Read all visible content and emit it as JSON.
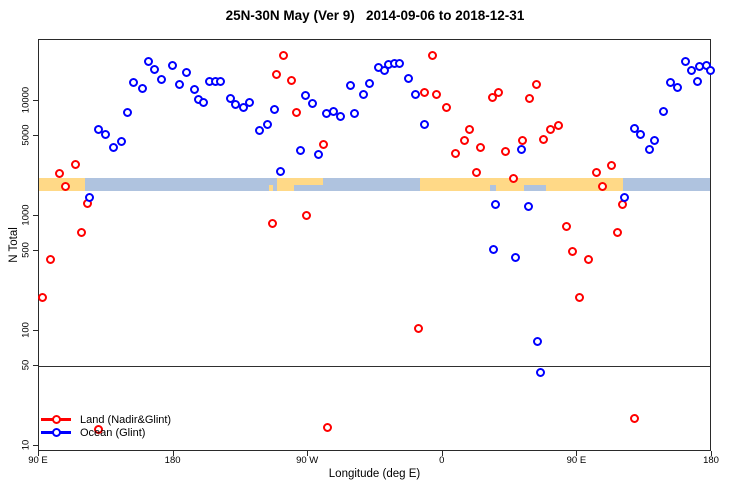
{
  "title": "25N-30N May (Ver 9)   2014-09-06 to 2018-12-31",
  "axes": {
    "x": {
      "label": "Longitude (deg E)",
      "min": 90,
      "max": 540,
      "ticks": [
        {
          "lon": 90,
          "label": "90 E"
        },
        {
          "lon": 180,
          "label": "180"
        },
        {
          "lon": 270,
          "label": "90 W"
        },
        {
          "lon": 360,
          "label": "0"
        },
        {
          "lon": 450,
          "label": "90 E"
        },
        {
          "lon": 540,
          "label": "180"
        }
      ]
    },
    "y": {
      "label": "N Total",
      "scale": "log",
      "min": 8.9,
      "max": 34000,
      "ticks": [
        {
          "value": 10000,
          "label": "10000"
        },
        {
          "value": 5000,
          "label": "5000"
        },
        {
          "value": 1000,
          "label": "1000"
        },
        {
          "value": 500,
          "label": "500"
        },
        {
          "value": 100,
          "label": "100"
        },
        {
          "value": 50,
          "label": "50"
        },
        {
          "value": 10,
          "label": "10"
        }
      ]
    }
  },
  "reference_line": {
    "value": 50,
    "color": "#2f2f2f"
  },
  "map_band": {
    "description": "thin land/ocean map strip of the 25N-30N latitude belt drawn across the plot",
    "top_value": 2140,
    "bottom_value": 1650,
    "ocean_color": "#AFC3DF",
    "land_color": "#FFD987",
    "land_segments": [
      {
        "from": 90,
        "to": 121,
        "part": "full"
      },
      {
        "from": 244,
        "to": 246.5,
        "part": "bottom"
      },
      {
        "from": 249,
        "to": 260.5,
        "part": "full"
      },
      {
        "from": 260.5,
        "to": 280,
        "part": "top"
      },
      {
        "from": 344.5,
        "to": 480.5,
        "part": "full"
      }
    ],
    "ocean_notches": [
      {
        "from": 391.5,
        "to": 395.5
      },
      {
        "from": 414,
        "to": 429
      }
    ]
  },
  "legend": {
    "items": [
      {
        "label": "Land (Nadir&Glint)",
        "color": "#FF0000"
      },
      {
        "label": "Ocean (Glint)",
        "color": "#0000FF"
      }
    ]
  },
  "chart_data": {
    "type": "scatter",
    "title": "25N-30N May (Ver 9)   2014-09-06 to 2018-12-31",
    "xlabel": "Longitude (deg E)",
    "ylabel": "N Total",
    "x_axis_note": "longitude wraps eastward: 90E (left edge) through 180, 90W, 0, 90E to 180 (right edge); stored as degrees-east offset 90..540",
    "y_scale": "log",
    "ylim": [
      8.9,
      34000
    ],
    "grid": false,
    "legend_position": "bottom-left",
    "series": [
      {
        "name": "Land (Nadir&Glint)",
        "color": "#FF0000",
        "marker": "open-circle",
        "points": [
          [
            92.5,
            195
          ],
          [
            97.5,
            420
          ],
          [
            103.5,
            2370
          ],
          [
            108,
            1800
          ],
          [
            114.5,
            2820
          ],
          [
            118.5,
            716
          ],
          [
            122.5,
            1290
          ],
          [
            130,
            14
          ],
          [
            246,
            870
          ],
          [
            249,
            17100
          ],
          [
            253.5,
            25100
          ],
          [
            258.5,
            15100
          ],
          [
            262.5,
            8020
          ],
          [
            269,
            1020
          ],
          [
            280,
            4200
          ],
          [
            283,
            14.5
          ],
          [
            343.5,
            106
          ],
          [
            348,
            12000
          ],
          [
            353,
            25100
          ],
          [
            356,
            11400
          ],
          [
            362.5,
            8870
          ],
          [
            368.5,
            3480
          ],
          [
            374.5,
            4550
          ],
          [
            378,
            5670
          ],
          [
            382.5,
            2380
          ],
          [
            385.5,
            3980
          ],
          [
            393.5,
            10700
          ],
          [
            397.5,
            11800
          ],
          [
            402,
            3670
          ],
          [
            407.5,
            2110
          ],
          [
            413,
            4550
          ],
          [
            418,
            10600
          ],
          [
            422.5,
            14000
          ],
          [
            427.5,
            4650
          ],
          [
            432,
            5670
          ],
          [
            437.5,
            6170
          ],
          [
            442.5,
            807
          ],
          [
            447,
            490
          ],
          [
            451.5,
            195
          ],
          [
            457.5,
            420
          ],
          [
            462.5,
            2420
          ],
          [
            467,
            1800
          ],
          [
            473,
            2780
          ],
          [
            477,
            716
          ],
          [
            480,
            1270
          ],
          [
            488,
            17.4
          ]
        ]
      },
      {
        "name": "Ocean (Glint)",
        "color": "#0000FF",
        "marker": "open-circle",
        "points": [
          [
            123.5,
            1440
          ],
          [
            130,
            5670
          ],
          [
            134.5,
            5140
          ],
          [
            140,
            3930
          ],
          [
            145,
            4430
          ],
          [
            149,
            8000
          ],
          [
            153.5,
            14400
          ],
          [
            159,
            13000
          ],
          [
            163.5,
            22000
          ],
          [
            167.5,
            18900
          ],
          [
            172,
            15500
          ],
          [
            179,
            20600
          ],
          [
            184,
            14000
          ],
          [
            188.5,
            17600
          ],
          [
            194,
            12600
          ],
          [
            196.5,
            10400
          ],
          [
            200,
            9660
          ],
          [
            204,
            14900
          ],
          [
            208,
            14900
          ],
          [
            211.5,
            14900
          ],
          [
            218,
            10600
          ],
          [
            221.5,
            9360
          ],
          [
            227,
            8870
          ],
          [
            231,
            9660
          ],
          [
            237.5,
            5600
          ],
          [
            242.5,
            6270
          ],
          [
            247.5,
            8470
          ],
          [
            251.5,
            2460
          ],
          [
            265,
            3750
          ],
          [
            268,
            11300
          ],
          [
            273,
            9480
          ],
          [
            277,
            3440
          ],
          [
            282,
            7760
          ],
          [
            287,
            8190
          ],
          [
            291.5,
            7410
          ],
          [
            298,
            13700
          ],
          [
            301,
            7760
          ],
          [
            307,
            11400
          ],
          [
            311,
            14300
          ],
          [
            317,
            19500
          ],
          [
            321,
            18600
          ],
          [
            324,
            20900
          ],
          [
            328,
            21300
          ],
          [
            331,
            21300
          ],
          [
            337,
            15800
          ],
          [
            342,
            11400
          ],
          [
            347.5,
            6270
          ],
          [
            394,
            513
          ],
          [
            395.5,
            1270
          ],
          [
            408.5,
            440
          ],
          [
            412.5,
            3800
          ],
          [
            417,
            1210
          ],
          [
            423,
            80.7
          ],
          [
            425.5,
            44
          ],
          [
            481.5,
            1440
          ],
          [
            488.5,
            5790
          ],
          [
            492,
            5130
          ],
          [
            498,
            3800
          ],
          [
            501.5,
            4550
          ],
          [
            507.5,
            8070
          ],
          [
            512.5,
            14400
          ],
          [
            517,
            13100
          ],
          [
            522,
            22000
          ],
          [
            526.5,
            18300
          ],
          [
            530,
            14900
          ],
          [
            531.5,
            20100
          ],
          [
            536,
            20300
          ],
          [
            539,
            18300
          ]
        ]
      }
    ]
  }
}
